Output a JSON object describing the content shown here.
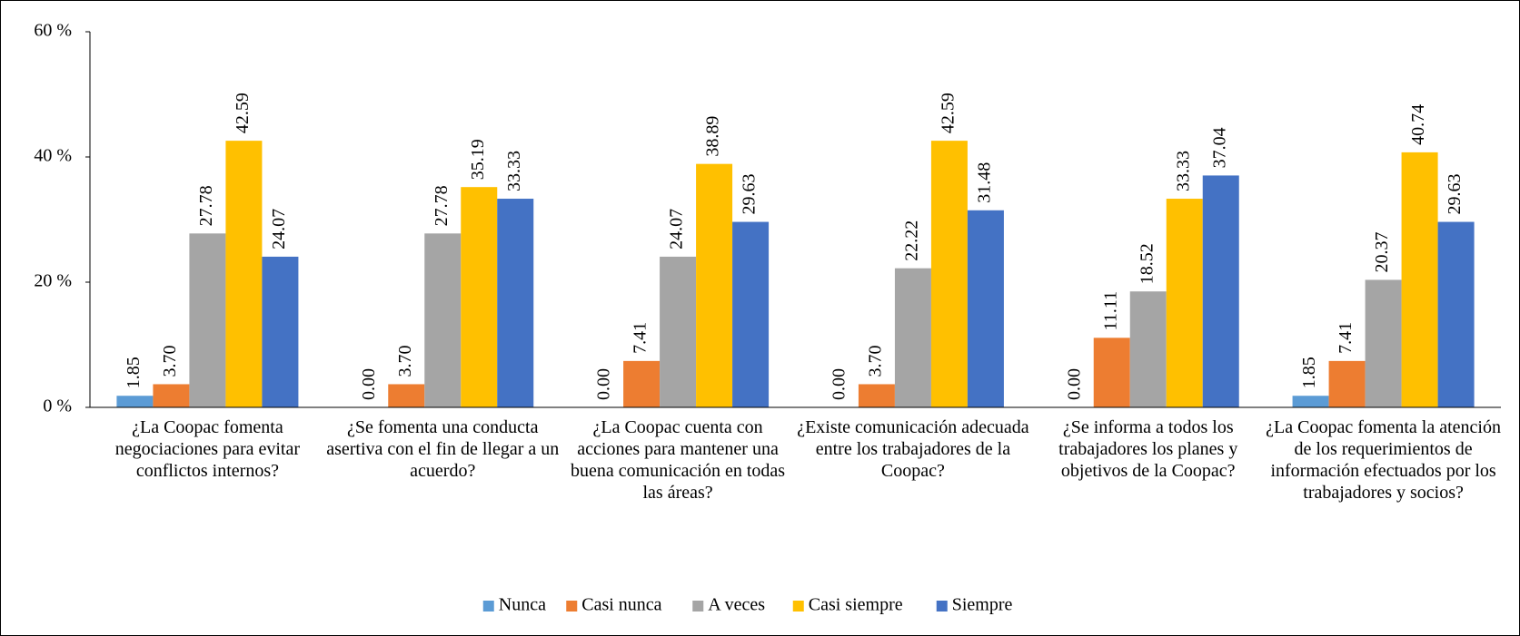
{
  "chart_data": {
    "type": "bar",
    "categories": [
      "¿La Coopac fomenta negociaciones para evitar conflictos internos?",
      "¿Se fomenta una conducta asertiva con el fin de llegar a un acuerdo?",
      "¿La Coopac cuenta con acciones para mantener una buena comunicación en todas las áreas?",
      "¿Existe comunicación adecuada entre los trabajadores de la Coopac?",
      "¿Se informa a todos los trabajadores los planes y objetivos de la Coopac?",
      "¿La Coopac fomenta la atención de los requerimientos de información efectuados por los trabajadores y socios?"
    ],
    "series": [
      {
        "name": "Nunca",
        "color": "#5b9bd5",
        "values": [
          1.85,
          0,
          0,
          0,
          0,
          1.85
        ],
        "value_labels": [
          "1.85",
          "0.00",
          "0.00",
          "0.00",
          "0.00",
          "1.85"
        ]
      },
      {
        "name": "Casi nunca",
        "color": "#ed7d31",
        "values": [
          3.7,
          3.7,
          7.41,
          3.7,
          11.11,
          7.41
        ],
        "value_labels": [
          "3.70",
          "3.70",
          "7.41",
          "3.70",
          "11.11",
          "7.41"
        ]
      },
      {
        "name": "A veces",
        "color": "#a5a5a5",
        "values": [
          27.78,
          27.78,
          24.07,
          22.22,
          18.52,
          20.37
        ],
        "value_labels": [
          "27.78",
          "27.78",
          "24.07",
          "22.22",
          "18.52",
          "20.37"
        ]
      },
      {
        "name": "Casi siempre",
        "color": "#ffc000",
        "values": [
          42.59,
          35.19,
          38.89,
          42.59,
          33.33,
          40.74
        ],
        "value_labels": [
          "42.59",
          "35.19",
          "38.89",
          "42.59",
          "33.33",
          "40.74"
        ]
      },
      {
        "name": "Siempre",
        "color": "#4472c4",
        "values": [
          24.07,
          33.33,
          29.63,
          31.48,
          37.04,
          29.63
        ],
        "value_labels": [
          "24.07",
          "33.33",
          "29.63",
          "31.48",
          "37.04",
          "29.63"
        ]
      }
    ],
    "ylim": [
      0,
      60
    ],
    "yticks": [
      {
        "value": 0,
        "label": "0 %"
      },
      {
        "value": 20,
        "label": "20 %"
      },
      {
        "value": 40,
        "label": "40 %"
      },
      {
        "value": 60,
        "label": "60 %"
      }
    ],
    "grid": false,
    "legend": "bottom"
  }
}
